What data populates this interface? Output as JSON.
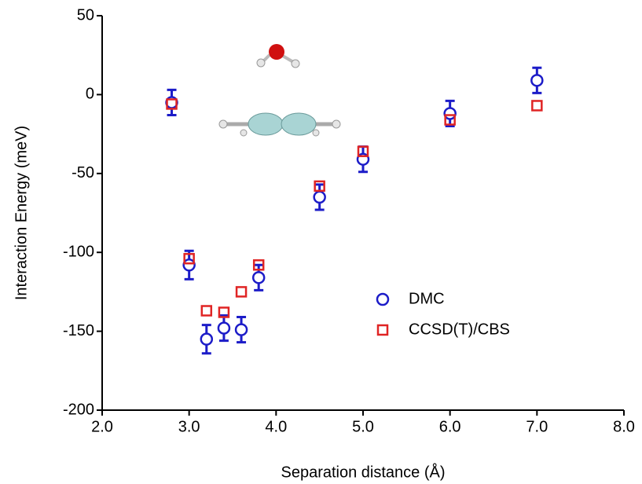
{
  "chart_data": {
    "type": "scatter",
    "x_label": "Separation distance (Å)",
    "y_label": "Interaction Energy (meV)",
    "x": [
      2.8,
      3.0,
      3.2,
      3.4,
      3.6,
      3.8,
      4.5,
      5.0,
      6.0,
      7.0
    ],
    "series": [
      {
        "name": "DMC",
        "color": "#1c1cc8",
        "marker": "circle",
        "values": [
          -5,
          -108,
          -155,
          -148,
          -149,
          -116,
          -65,
          -41,
          -12,
          9
        ],
        "errors": [
          8,
          9,
          9,
          8,
          8,
          8,
          8,
          8,
          8,
          8
        ]
      },
      {
        "name": "CCSD(T)/CBS",
        "color": "#e02424",
        "marker": "square",
        "values": [
          -6,
          -104,
          -137,
          -138,
          -125,
          -108,
          -58,
          -36,
          -16,
          -7
        ]
      }
    ],
    "xlim": [
      2,
      8
    ],
    "xticks": [
      {
        "value": 2,
        "label": "2.0"
      },
      {
        "value": 3,
        "label": "3.0"
      },
      {
        "value": 4,
        "label": "4.0"
      },
      {
        "value": 5,
        "label": "5.0"
      },
      {
        "value": 6,
        "label": "6.0"
      },
      {
        "value": 7,
        "label": "7.0"
      },
      {
        "value": 8,
        "label": "8.0"
      }
    ],
    "ylim": [
      -200,
      50
    ],
    "yticks": [
      50,
      0,
      -50,
      -100,
      -150,
      -200
    ],
    "grid": false
  }
}
